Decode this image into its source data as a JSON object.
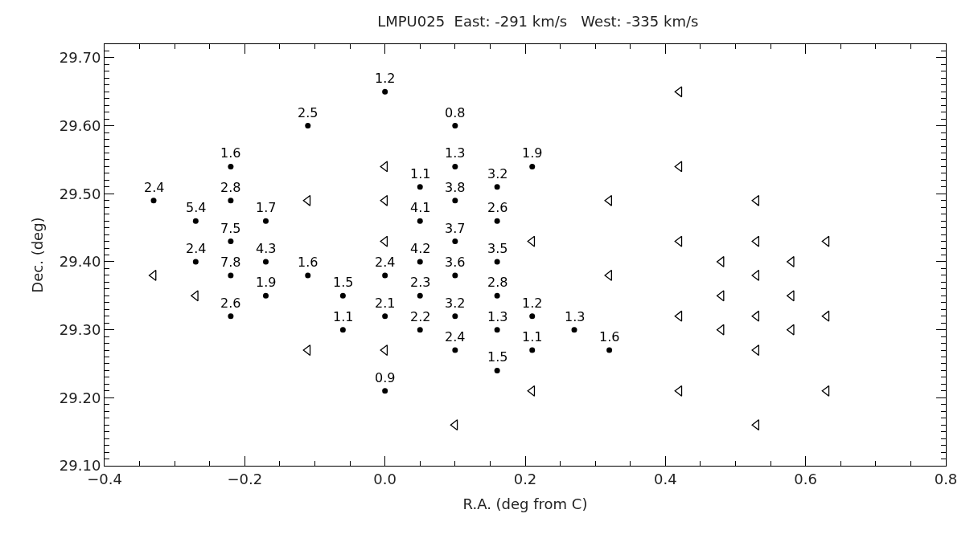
{
  "chart_data": {
    "type": "scatter",
    "title": "LMPU025  East: -291 km/s   West: -335 km/s",
    "xlabel": "R.A. (deg from C)",
    "ylabel": "Dec. (deg)",
    "xlim": [
      -0.4,
      0.8
    ],
    "xticks": [
      -0.4,
      -0.2,
      {
        "value": 0,
        "label": "0.0"
      },
      0.2,
      0.4,
      0.6,
      0.8
    ],
    "ylim": [
      29.1,
      29.72
    ],
    "yticks": [
      {
        "value": 29.1,
        "label": "29.10"
      },
      {
        "value": 29.2,
        "label": "29.20"
      },
      {
        "value": 29.3,
        "label": "29.30"
      },
      {
        "value": 29.4,
        "label": "29.40"
      },
      {
        "value": 29.5,
        "label": "29.50"
      },
      {
        "value": 29.6,
        "label": "29.60"
      },
      {
        "value": 29.7,
        "label": "29.70"
      }
    ],
    "marker": "none",
    "series": [
      {
        "color": "#000000",
        "x": [
          -0.33,
          -0.27,
          -0.27,
          -0.22,
          -0.22,
          -0.22,
          -0.22,
          -0.22,
          -0.17,
          -0.17,
          -0.17,
          -0.11,
          -0.11,
          -0.06,
          -0.06,
          0.0,
          0.0,
          0.0,
          0.0,
          0.05,
          0.05,
          0.05,
          0.05,
          0.05,
          0.1,
          0.1,
          0.1,
          0.1,
          0.1,
          0.1,
          0.1,
          0.16,
          0.16,
          0.16,
          0.16,
          0.16,
          0.16,
          0.21,
          0.21,
          0.21,
          0.27,
          0.32
        ],
        "values": [
          29.49,
          29.46,
          29.4,
          29.54,
          29.49,
          29.43,
          29.38,
          29.32,
          29.46,
          29.4,
          29.35,
          29.6,
          29.38,
          29.35,
          29.3,
          29.65,
          29.38,
          29.32,
          29.21,
          29.51,
          29.46,
          29.4,
          29.35,
          29.3,
          29.6,
          29.54,
          29.49,
          29.43,
          29.38,
          29.32,
          29.27,
          29.51,
          29.46,
          29.4,
          29.35,
          29.3,
          29.24,
          29.54,
          29.32,
          29.27,
          29.3,
          29.27
        ]
      },
      {
        "color": "#000000",
        "marker": "triangle",
        "x": [
          -0.33,
          -0.27,
          -0.11,
          -0.11,
          0.0,
          0.0,
          0.0,
          0.0,
          0.1,
          0.21,
          0.21,
          0.32,
          0.32,
          0.42,
          0.42,
          0.42,
          0.42,
          0.42,
          0.48,
          0.48,
          0.48,
          0.53,
          0.53,
          0.53,
          0.53,
          0.53,
          0.53,
          0.58,
          0.58,
          0.58,
          0.63,
          0.63,
          0.63
        ],
        "values": [
          29.38,
          29.35,
          29.49,
          29.27,
          29.54,
          29.49,
          29.43,
          29.27,
          29.16,
          29.43,
          29.21,
          29.49,
          29.38,
          29.65,
          29.54,
          29.43,
          29.32,
          29.21,
          29.4,
          29.35,
          29.3,
          29.49,
          29.43,
          29.38,
          29.32,
          29.27,
          29.16,
          29.4,
          29.35,
          29.3,
          29.43,
          29.32,
          29.21
        ]
      }
    ],
    "annotations": [
      {
        "text": "2.4",
        "x": -0.33,
        "y": 29.49
      },
      {
        "text": "5.4",
        "x": -0.27,
        "y": 29.46
      },
      {
        "text": "2.4",
        "x": -0.27,
        "y": 29.4
      },
      {
        "text": "1.6",
        "x": -0.22,
        "y": 29.54
      },
      {
        "text": "2.8",
        "x": -0.22,
        "y": 29.49
      },
      {
        "text": "7.5",
        "x": -0.22,
        "y": 29.43
      },
      {
        "text": "7.8",
        "x": -0.22,
        "y": 29.38
      },
      {
        "text": "2.6",
        "x": -0.22,
        "y": 29.32
      },
      {
        "text": "1.7",
        "x": -0.17,
        "y": 29.46
      },
      {
        "text": "4.3",
        "x": -0.17,
        "y": 29.4
      },
      {
        "text": "1.9",
        "x": -0.17,
        "y": 29.35
      },
      {
        "text": "2.5",
        "x": -0.11,
        "y": 29.6
      },
      {
        "text": "1.6",
        "x": -0.11,
        "y": 29.38
      },
      {
        "text": "1.5",
        "x": -0.06,
        "y": 29.35
      },
      {
        "text": "1.1",
        "x": -0.06,
        "y": 29.3
      },
      {
        "text": "1.2",
        "x": 0.0,
        "y": 29.65
      },
      {
        "text": "2.4",
        "x": 0.0,
        "y": 29.38
      },
      {
        "text": "2.1",
        "x": 0.0,
        "y": 29.32
      },
      {
        "text": "0.9",
        "x": 0.0,
        "y": 29.21
      },
      {
        "text": "1.1",
        "x": 0.05,
        "y": 29.51
      },
      {
        "text": "4.1",
        "x": 0.05,
        "y": 29.46
      },
      {
        "text": "4.2",
        "x": 0.05,
        "y": 29.4
      },
      {
        "text": "2.3",
        "x": 0.05,
        "y": 29.35
      },
      {
        "text": "2.2",
        "x": 0.05,
        "y": 29.3
      },
      {
        "text": "0.8",
        "x": 0.1,
        "y": 29.6
      },
      {
        "text": "1.3",
        "x": 0.1,
        "y": 29.54
      },
      {
        "text": "3.8",
        "x": 0.1,
        "y": 29.49
      },
      {
        "text": "3.7",
        "x": 0.1,
        "y": 29.43
      },
      {
        "text": "3.6",
        "x": 0.1,
        "y": 29.38
      },
      {
        "text": "3.2",
        "x": 0.1,
        "y": 29.32
      },
      {
        "text": "2.4",
        "x": 0.1,
        "y": 29.27
      },
      {
        "text": "3.2",
        "x": 0.16,
        "y": 29.51
      },
      {
        "text": "2.6",
        "x": 0.16,
        "y": 29.46
      },
      {
        "text": "3.5",
        "x": 0.16,
        "y": 29.4
      },
      {
        "text": "2.8",
        "x": 0.16,
        "y": 29.35
      },
      {
        "text": "1.3",
        "x": 0.16,
        "y": 29.3
      },
      {
        "text": "1.5",
        "x": 0.16,
        "y": 29.24
      },
      {
        "text": "1.9",
        "x": 0.21,
        "y": 29.54
      },
      {
        "text": "1.2",
        "x": 0.21,
        "y": 29.32
      },
      {
        "text": "1.1",
        "x": 0.21,
        "y": 29.27
      },
      {
        "text": "1.3",
        "x": 0.27,
        "y": 29.3
      },
      {
        "text": "1.6",
        "x": 0.32,
        "y": 29.27
      }
    ]
  }
}
